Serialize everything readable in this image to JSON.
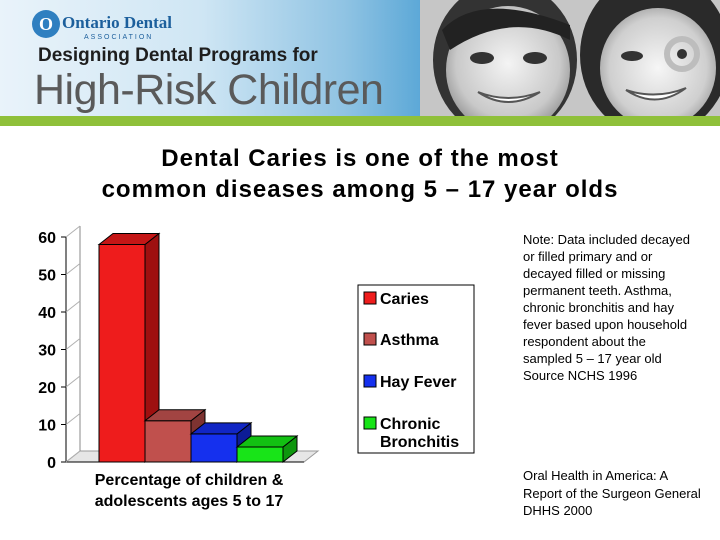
{
  "banner": {
    "logo_mark": "O",
    "logo_name": "Ontario Dental",
    "logo_sub": "ASSOCIATION",
    "subtitle": "Designing Dental Programs for",
    "title": "High-Risk Children"
  },
  "heading": {
    "line1": "Dental Caries is one of the most",
    "line2": "common diseases among 5 – 17 year olds"
  },
  "note": "Note:  Data included decayed or filled primary and or decayed filled or missing permanent teeth. Asthma, chronic bronchitis and hay fever based upon household respondent about the sampled 5 – 17 year old   Source NCHS 1996",
  "source": "Oral Health in America: A Report of the Surgeon General DHHS 2000",
  "chart_data": {
    "type": "bar",
    "title": "",
    "xlabel": "Percentage of children & adolescents ages 5 to 17",
    "xlabel_lines": [
      "Percentage of children &",
      "adolescents ages 5 to 17"
    ],
    "ylabel": "",
    "ylim": [
      0,
      60
    ],
    "yticks": [
      0,
      10,
      20,
      30,
      40,
      50,
      60
    ],
    "ytick_labels": [
      "0",
      "10",
      "20",
      "30",
      "40",
      "50",
      "60"
    ],
    "three_d": true,
    "grid": false,
    "legend_position": "right",
    "series": [
      {
        "name": "Caries",
        "value": 58,
        "color": "#ee1c1c",
        "side_color": "#9e1010",
        "top_color": "#c41616"
      },
      {
        "name": "Asthma",
        "value": 11,
        "color": "#c0504d",
        "side_color": "#7e3331",
        "top_color": "#a24442"
      },
      {
        "name": "Hay Fever",
        "value": 7.5,
        "color": "#1530ee",
        "side_color": "#0c1c96",
        "top_color": "#1126c4"
      },
      {
        "name": "Chronic Bronchitis",
        "value": 4,
        "color": "#18e418",
        "side_color": "#0e960e",
        "top_color": "#12c012"
      }
    ],
    "legend_labels": [
      [
        "Caries"
      ],
      [
        "Asthma"
      ],
      [
        "Hay Fever"
      ],
      [
        "Chronic",
        "Bronchitis"
      ]
    ]
  }
}
